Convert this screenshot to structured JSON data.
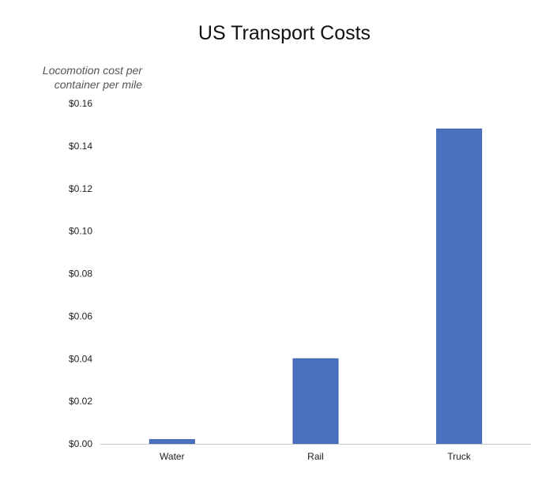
{
  "chart_data": {
    "type": "bar",
    "title": "US Transport Costs",
    "ylabel": "Locomotion cost per container per mile",
    "xlabel": "",
    "categories": [
      "Water",
      "Rail",
      "Truck"
    ],
    "values": [
      0.002,
      0.04,
      0.148
    ],
    "ylim": [
      0,
      0.16
    ],
    "yticks": [
      0.0,
      0.02,
      0.04,
      0.06,
      0.08,
      0.1,
      0.12,
      0.14,
      0.16
    ],
    "ytick_labels": [
      "$0.00",
      "$0.02",
      "$0.04",
      "$0.06",
      "$0.08",
      "$0.10",
      "$0.12",
      "$0.14",
      "$0.16"
    ],
    "grid": false,
    "legend": "none",
    "bar_color": "#4a72c0"
  }
}
